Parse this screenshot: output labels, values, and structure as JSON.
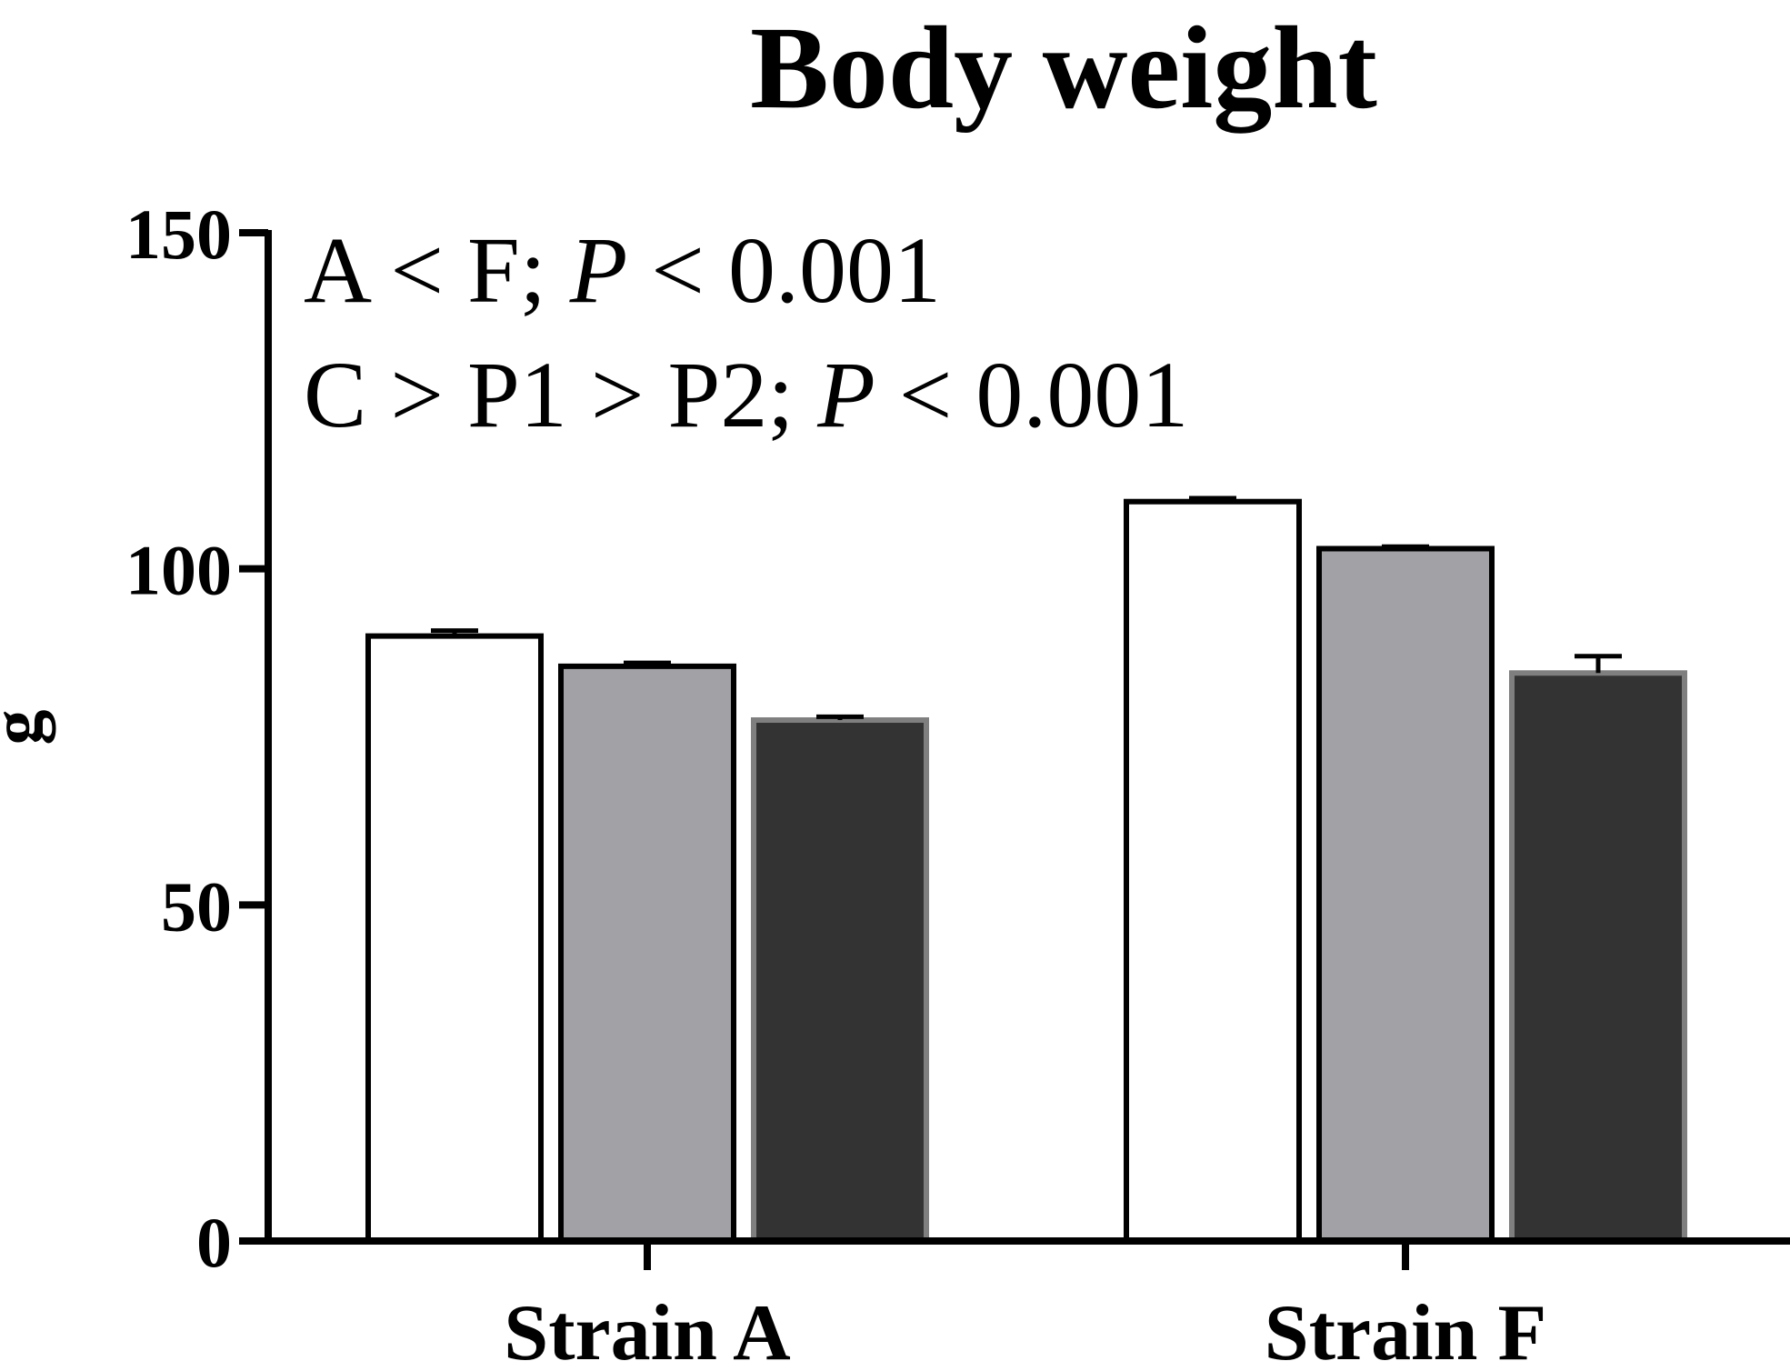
{
  "chart_data": {
    "type": "bar",
    "title": "Body weight",
    "ylabel": "g",
    "xlabel": "",
    "ylim": [
      0,
      150
    ],
    "yticks": [
      0,
      50,
      100,
      150
    ],
    "categories": [
      "Strain A",
      "Strain F"
    ],
    "series": [
      {
        "values": [
          90,
          110
        ],
        "errors": [
          0.8,
          0.5
        ],
        "fill": "#ffffff",
        "stroke": "#000000"
      },
      {
        "values": [
          85.5,
          103
        ],
        "errors": [
          0.5,
          0.3
        ],
        "fill": "#a2a1a6",
        "stroke": "#000000"
      },
      {
        "values": [
          77.5,
          84.5
        ],
        "errors": [
          0.5,
          2.5
        ],
        "fill": "#333333",
        "stroke": "#7f7f7f"
      }
    ],
    "annotations": [
      {
        "pre": "A < F; ",
        "italic": "P",
        "post": " < 0.001"
      },
      {
        "pre": "C > P1 > P2; ",
        "italic": "P",
        "post": " < 0.001"
      }
    ],
    "legend": "none",
    "grid": false
  }
}
